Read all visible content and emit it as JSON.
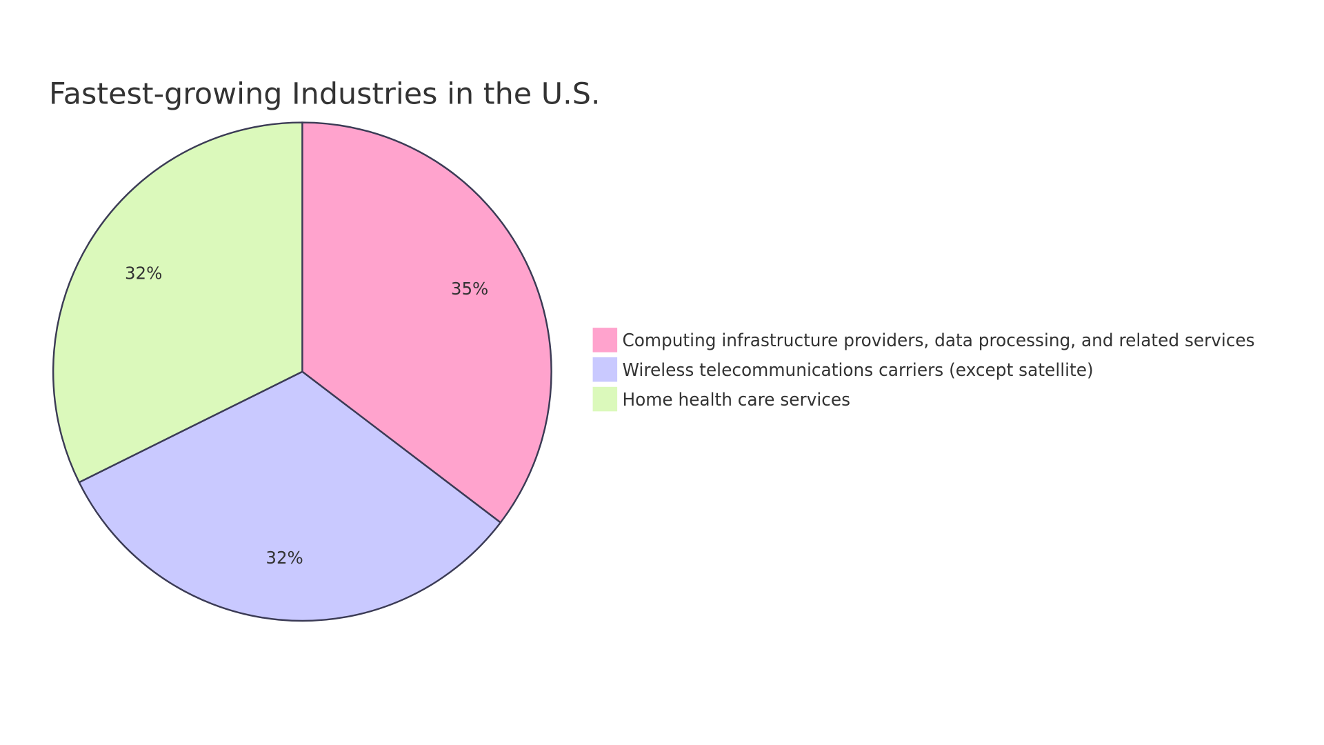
{
  "chart_data": {
    "type": "pie",
    "title": "Fastest-growing Industries in the U.S.",
    "legend_position": "right",
    "slices": [
      {
        "label": "Computing infrastructure providers, data processing, and related services",
        "value": 35,
        "display": "35%",
        "color": "#FFA3CD"
      },
      {
        "label": "Wireless telecommunications carriers (except satellite)",
        "value": 32,
        "display": "32%",
        "color": "#C9C9FF"
      },
      {
        "label": "Home health care services",
        "value": 32,
        "display": "32%",
        "color": "#DBF9BB"
      }
    ],
    "stroke_color": "#3B3B55"
  }
}
